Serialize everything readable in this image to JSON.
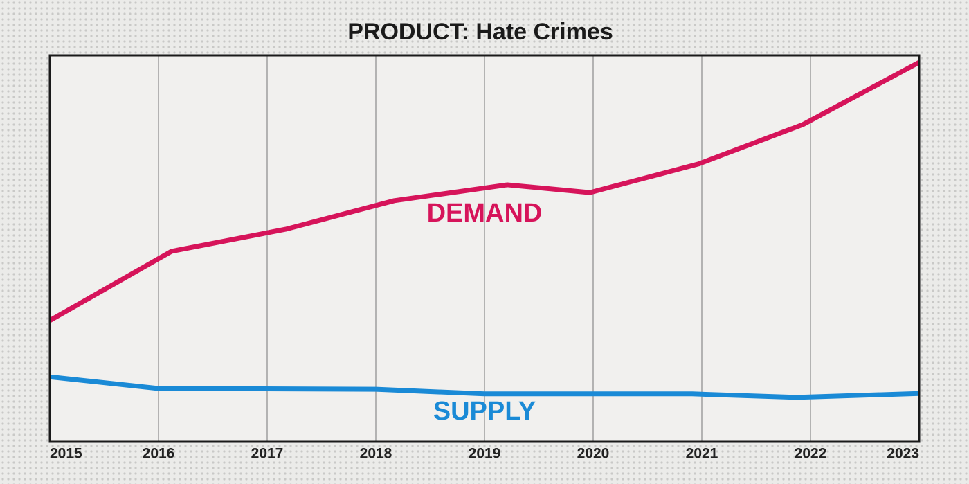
{
  "chart_data": {
    "type": "line",
    "title": "PRODUCT: Hate Crimes",
    "xlim": [
      2015,
      2023
    ],
    "xticks": [
      2015,
      2016,
      2017,
      2018,
      2019,
      2020,
      2021,
      2022,
      2023
    ],
    "ylim": [
      0,
      100
    ],
    "grid": true,
    "series": [
      {
        "name": "DEMAND",
        "color": "#d6145a",
        "x": [
          2015,
          2016.12,
          2017.17,
          2018.17,
          2019.21,
          2019.97,
          2020.97,
          2021.93,
          2023
        ],
        "values": [
          31.4,
          49.3,
          55.0,
          62.4,
          66.5,
          64.5,
          71.9,
          82.1,
          98.2
        ]
      },
      {
        "name": "SUPPLY",
        "color": "#1a8ad6",
        "x": [
          2015,
          2016,
          2018,
          2019,
          2020.91,
          2021.87,
          2023
        ],
        "values": [
          16.8,
          13.8,
          13.6,
          12.4,
          12.4,
          11.5,
          12.5
        ]
      }
    ]
  }
}
